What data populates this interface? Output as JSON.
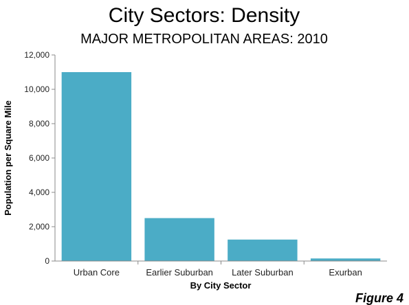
{
  "figure_label": "Figure 4",
  "chart_data": {
    "type": "bar",
    "title": "City Sectors: Density",
    "subtitle": "MAJOR METROPOLITAN AREAS: 2010",
    "xlabel": "By City Sector",
    "ylabel": "Population per Square Mile",
    "categories": [
      "Urban Core",
      "Earlier Suburban",
      "Later Suburban",
      "Exurban"
    ],
    "values": [
      11000,
      2500,
      1250,
      150
    ],
    "ylim": [
      0,
      12000
    ],
    "yticks": [
      0,
      2000,
      4000,
      6000,
      8000,
      10000,
      12000
    ],
    "ytick_labels": [
      "0",
      "2,000",
      "4,000",
      "6,000",
      "8,000",
      "10,000",
      "12,000"
    ],
    "bar_color": "#4BACC6",
    "grid": false,
    "legend": "none"
  }
}
